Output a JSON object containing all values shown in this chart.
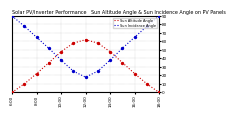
{
  "title": "Solar PV/Inverter Performance   Sun Altitude Angle & Sun Incidence Angle on PV Panels",
  "blue_label": "Sun Incidence Angle",
  "red_label": "Sun Altitude Angle",
  "x_hours": [
    6,
    7,
    8,
    9,
    10,
    11,
    12,
    13,
    14,
    15,
    16,
    17,
    18
  ],
  "sun_altitude": [
    0,
    10,
    22,
    35,
    48,
    58,
    62,
    58,
    48,
    35,
    22,
    10,
    0
  ],
  "sun_incidence": [
    90,
    78,
    65,
    52,
    38,
    25,
    18,
    25,
    38,
    52,
    65,
    78,
    90
  ],
  "alt_color": "#cc0000",
  "inc_color": "#0000cc",
  "ylim": [
    0,
    90
  ],
  "xlim": [
    6,
    18
  ],
  "bg_color": "#ffffff",
  "grid_color": "#aaaaaa",
  "title_fontsize": 3.5,
  "tick_fontsize": 3.0
}
